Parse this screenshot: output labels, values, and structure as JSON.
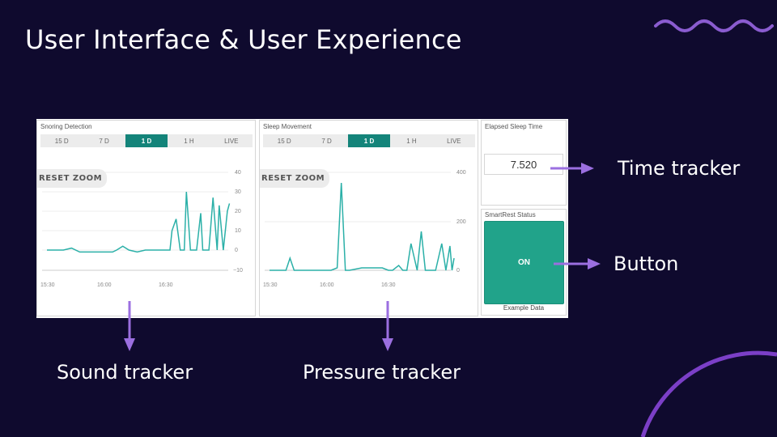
{
  "title": "User Interface & User Experience",
  "colors": {
    "background": "#0f0a2e",
    "accent": "#8a5cd0",
    "teal": "#21a38a",
    "tab_active": "#14847a",
    "line": "#2bb0a8"
  },
  "tabs": [
    "15 D",
    "7 D",
    "1 D",
    "1 H",
    "LIVE"
  ],
  "active_tab": "1 D",
  "reset_zoom": "RESET ZOOM",
  "panels": {
    "snoring": {
      "title": "Snoring Detection",
      "y_ticks": [
        "40",
        "30",
        "20",
        "10",
        "0",
        "−10"
      ],
      "x_ticks": [
        "15:30",
        "16:00",
        "16:30"
      ],
      "chart_data": {
        "type": "line",
        "x": [
          "15:30",
          "15:34",
          "15:38",
          "15:42",
          "15:46",
          "15:50",
          "15:54",
          "15:58",
          "16:02",
          "16:04",
          "16:07",
          "16:10",
          "16:14",
          "16:18",
          "16:22",
          "16:26",
          "16:29",
          "16:30",
          "16:31",
          "16:33",
          "16:35",
          "16:37",
          "16:38",
          "16:40",
          "16:43",
          "16:45",
          "16:46",
          "16:47",
          "16:49",
          "16:51",
          "16:53",
          "16:54",
          "16:56",
          "16:58",
          "16:59"
        ],
        "values": [
          0,
          0,
          0,
          1,
          -1,
          -1,
          -1,
          -1,
          -1,
          0,
          2,
          0,
          -1,
          0,
          0,
          0,
          0,
          0,
          10,
          16,
          0,
          0,
          30,
          0,
          0,
          19,
          0,
          0,
          0,
          27,
          0,
          23,
          0,
          20,
          24
        ],
        "ylim": [
          -10,
          40
        ]
      }
    },
    "movement": {
      "title": "Sleep Movement",
      "y_ticks": [
        "400",
        "200",
        "0"
      ],
      "x_ticks": [
        "15:30",
        "16:00",
        "16:30"
      ],
      "chart_data": {
        "type": "line",
        "x": [
          "15:30",
          "15:34",
          "15:38",
          "15:40",
          "15:42",
          "15:44",
          "15:50",
          "15:56",
          "16:00",
          "16:03",
          "16:05",
          "16:07",
          "16:09",
          "16:12",
          "16:15",
          "16:20",
          "16:25",
          "16:28",
          "16:30",
          "16:33",
          "16:35",
          "16:37",
          "16:39",
          "16:42",
          "16:44",
          "16:46",
          "16:48",
          "16:51",
          "16:54",
          "16:56",
          "16:58",
          "16:59",
          "17:00"
        ],
        "values": [
          0,
          0,
          0,
          50,
          0,
          0,
          0,
          0,
          0,
          10,
          360,
          0,
          0,
          5,
          10,
          10,
          10,
          0,
          0,
          20,
          0,
          0,
          110,
          0,
          160,
          0,
          0,
          0,
          110,
          0,
          100,
          0,
          50
        ],
        "ylim": [
          -10,
          420
        ]
      }
    },
    "elapsed": {
      "title": "Elapsed Sleep Time",
      "value": "7.520"
    },
    "status": {
      "title": "SmartRest Status",
      "button": "ON",
      "caption": "Example Data"
    }
  },
  "annotations": {
    "time": "Time tracker",
    "button": "Button",
    "sound": "Sound tracker",
    "pressure": "Pressure tracker"
  }
}
